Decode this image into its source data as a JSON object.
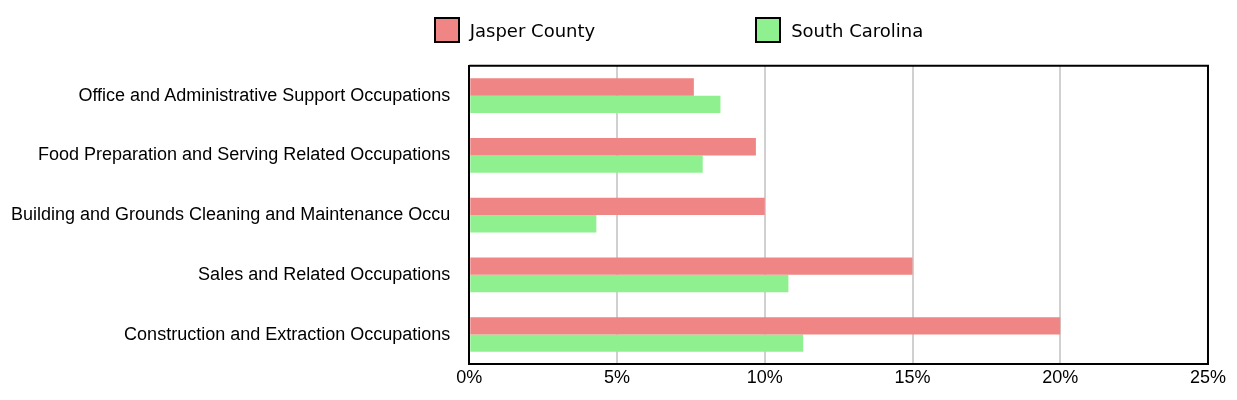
{
  "chart_data": {
    "type": "bar",
    "orientation": "horizontal",
    "categories": [
      "Office and Administrative Support Occupations",
      "Food Preparation and Serving Related Occupations",
      "Building and Grounds Cleaning and Maintenance Occu",
      "Sales and Related Occupations",
      "Construction and Extraction Occupations"
    ],
    "series": [
      {
        "name": "Jasper County",
        "color": "#f08585",
        "values": [
          7.6,
          9.7,
          10.0,
          15.0,
          20.0
        ]
      },
      {
        "name": "South Carolina",
        "color": "#8ff08f",
        "values": [
          8.5,
          7.9,
          4.3,
          10.8,
          11.3
        ]
      }
    ],
    "xlim": [
      0,
      25
    ],
    "xticks": [
      {
        "value": 0,
        "label": "0%"
      },
      {
        "value": 5,
        "label": "5%"
      },
      {
        "value": 10,
        "label": "10%"
      },
      {
        "value": 15,
        "label": "15%"
      },
      {
        "value": 20,
        "label": "20%"
      },
      {
        "value": 25,
        "label": "25%"
      }
    ],
    "grid": "x",
    "legend": "top"
  }
}
